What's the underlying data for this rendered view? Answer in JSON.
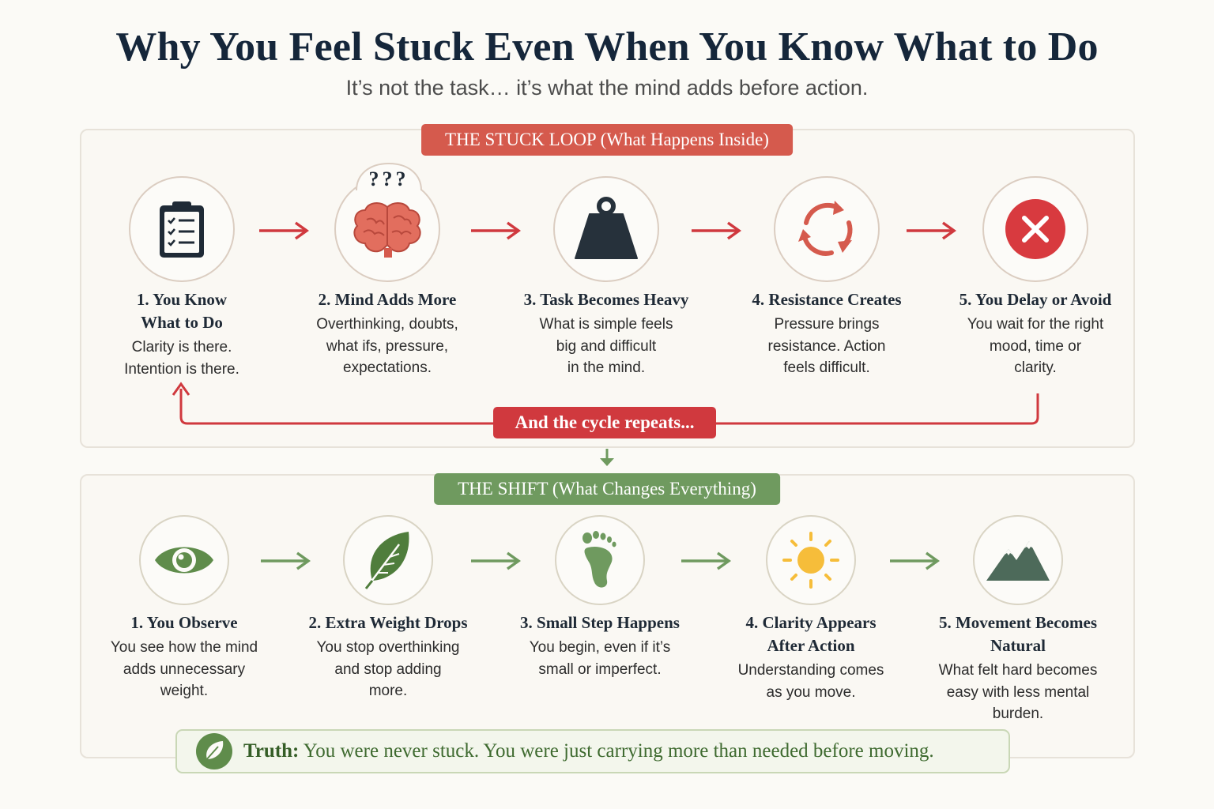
{
  "header": {
    "title": "Why You Feel Stuck Even When You Know What to Do",
    "subtitle": "It’s not the task… it’s what the mind adds before action."
  },
  "stuck_loop": {
    "banner": "THE STUCK LOOP (What Happens Inside)",
    "cycle_label": "And the cycle repeats...",
    "steps": [
      {
        "title_lines": [
          "1. You Know",
          "What to Do"
        ],
        "text_lines": [
          "Clarity is there.",
          "Intention is there."
        ],
        "icon": "clipboard-checklist-icon"
      },
      {
        "title_lines": [
          "2. Mind Adds More"
        ],
        "text_lines": [
          "Overthinking, doubts,",
          "what ifs, pressure,",
          "expectations."
        ],
        "icon": "brain-icon",
        "icon_text": "???"
      },
      {
        "title_lines": [
          "3. Task Becomes Heavy"
        ],
        "text_lines": [
          "What is simple feels",
          "big and difficult",
          "in the mind."
        ],
        "icon": "weight-icon"
      },
      {
        "title_lines": [
          "4. Resistance Creates"
        ],
        "text_lines": [
          "Pressure brings",
          "resistance. Action",
          "feels difficult."
        ],
        "icon": "cycle-arrows-icon"
      },
      {
        "title_lines": [
          "5. You Delay or Avoid"
        ],
        "text_lines": [
          "You wait for the right",
          "mood, time or",
          "clarity."
        ],
        "icon": "x-mark-icon"
      }
    ]
  },
  "shift": {
    "banner": "THE SHIFT (What Changes Everything)",
    "steps": [
      {
        "title_lines": [
          "1. You Observe"
        ],
        "text_lines": [
          "You see how the mind",
          "adds unnecessary",
          "weight."
        ],
        "icon": "eye-icon"
      },
      {
        "title_lines": [
          "2. Extra Weight Drops"
        ],
        "text_lines": [
          "You stop overthinking",
          "and stop adding",
          "more."
        ],
        "icon": "leaf-icon"
      },
      {
        "title_lines": [
          "3. Small Step Happens"
        ],
        "text_lines": [
          "You begin, even if it’s",
          "small or imperfect."
        ],
        "icon": "footprint-icon"
      },
      {
        "title_lines": [
          "4. Clarity Appears",
          "After Action"
        ],
        "text_lines": [
          "Understanding comes",
          "as you move."
        ],
        "icon": "sun-icon"
      },
      {
        "title_lines": [
          "5. Movement Becomes",
          "Natural"
        ],
        "text_lines": [
          "What felt hard becomes",
          "easy with less mental",
          "burden."
        ],
        "icon": "mountain-icon"
      }
    ]
  },
  "truth": {
    "label": "Truth:",
    "text": " You were never stuck. You were just carrying more than needed before moving.",
    "icon": "leaf-icon"
  },
  "colors": {
    "red_accent": "#d55a4d",
    "cycle_red": "#d0393e",
    "green_accent": "#6f9a5f",
    "title_navy": "#15263a"
  }
}
